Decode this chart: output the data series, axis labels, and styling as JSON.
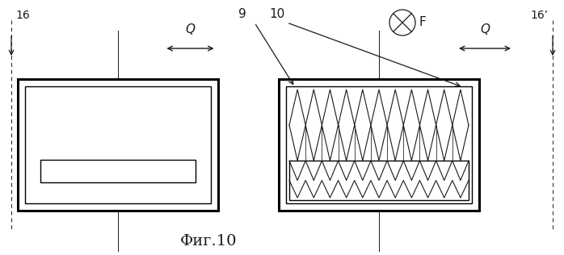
{
  "fig_label": "Фиг.10",
  "labels": {
    "16_left": "16",
    "16_right": "16’",
    "9": "9",
    "10": "10",
    "Q_left": "Q",
    "Q_right": "Q",
    "F": "F"
  },
  "bg_color": "#ffffff",
  "line_color": "#1a1a1a",
  "figsize": [
    6.98,
    3.16
  ],
  "dpi": 100
}
